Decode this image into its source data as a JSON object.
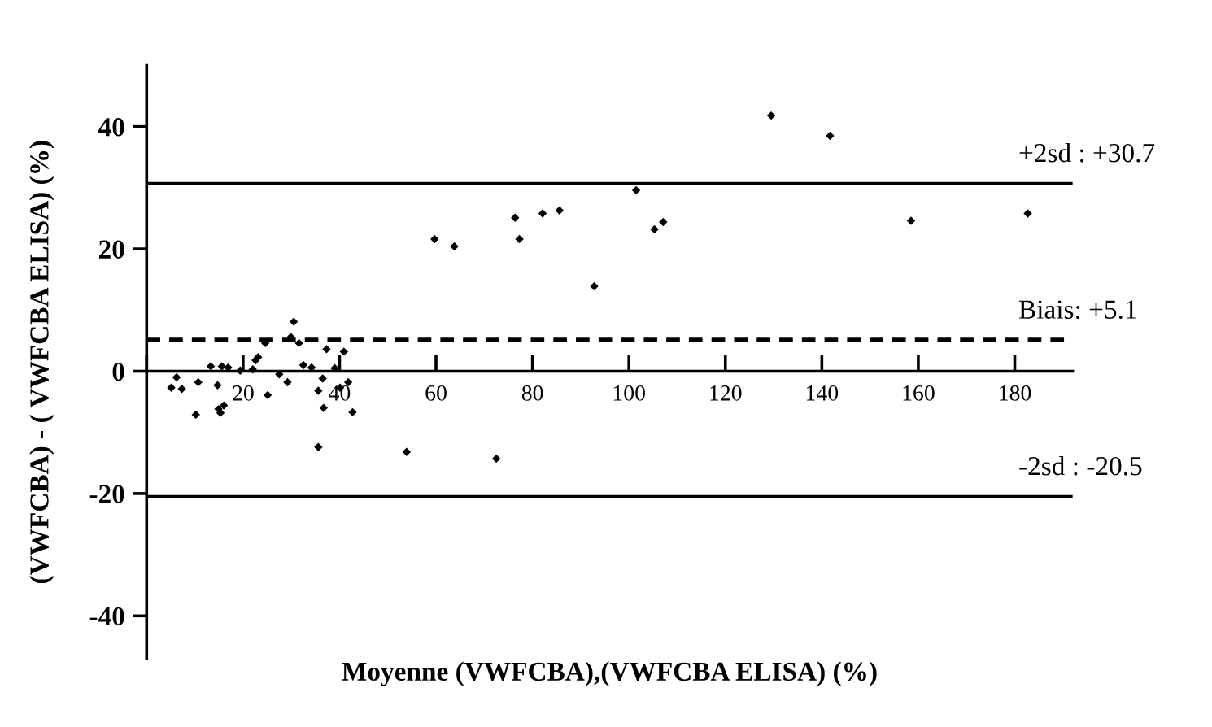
{
  "chart_data": {
    "type": "scatter",
    "xlabel": "Moyenne (VWFCBA),(VWFCBA ELISA) (%)",
    "ylabel": "(VWFCBA) - ( VWFCBA ELISA) (%)",
    "series": [
      {
        "color": "#000000",
        "x": [
          6.2,
          5.1,
          7.3,
          10.2,
          10.7,
          13.3,
          14.7,
          14.9,
          15.3,
          16.0,
          15.6,
          16.9,
          19.4,
          22.0,
          22.6,
          23.1,
          24.6,
          25.1,
          27.5,
          29.2,
          29.9,
          30.5,
          31.6,
          32.5,
          34.2,
          35.6,
          35.6,
          36.5,
          37.3,
          36.7,
          39.0,
          40.1,
          40.9,
          41.8,
          42.7,
          53.9,
          59.7,
          63.8,
          76.4,
          77.3,
          82.1,
          85.6,
          92.8,
          101.5,
          105.3,
          107.1,
          129.5,
          72.5,
          141.7,
          158.5,
          182.7
        ],
        "values": [
          -1.0,
          -2.7,
          -2.9,
          -7.1,
          -1.8,
          0.8,
          -2.3,
          -6.2,
          -6.8,
          -5.6,
          0.8,
          0.6,
          0.1,
          0.3,
          1.8,
          2.3,
          4.6,
          -3.9,
          -0.5,
          -1.8,
          5.6,
          8.1,
          4.6,
          1.0,
          0.6,
          -12.4,
          -3.2,
          -1.2,
          3.6,
          -6.0,
          0.5,
          -2.7,
          3.2,
          -1.8,
          -6.7,
          -13.2,
          21.6,
          20.4,
          25.1,
          21.6,
          25.8,
          26.3,
          13.9,
          29.6,
          23.2,
          24.4,
          41.8,
          -14.3,
          38.5,
          24.6,
          25.8
        ]
      }
    ],
    "marker": "diamond",
    "xlim": [
      0,
      192
    ],
    "ylim": [
      -47,
      50
    ],
    "xticks": [
      {
        "value": 0,
        "label": null
      },
      20,
      40,
      60,
      80,
      100,
      120,
      140,
      160,
      180
    ],
    "yticks": [
      -40,
      -20,
      0,
      20,
      40
    ],
    "ref_lines": [
      {
        "axis": "y",
        "value": 30.7,
        "label": "+2sd : +30.7",
        "line_style": "solid",
        "color": "#000000"
      },
      {
        "axis": "y",
        "value": 5.1,
        "label": "Biais: +5.1",
        "line_style": "dashed",
        "color": "#000000"
      },
      {
        "axis": "y",
        "value": -20.5,
        "label": "-2sd : -20.5",
        "line_style": "solid",
        "color": "#000000"
      }
    ],
    "legend": false
  }
}
